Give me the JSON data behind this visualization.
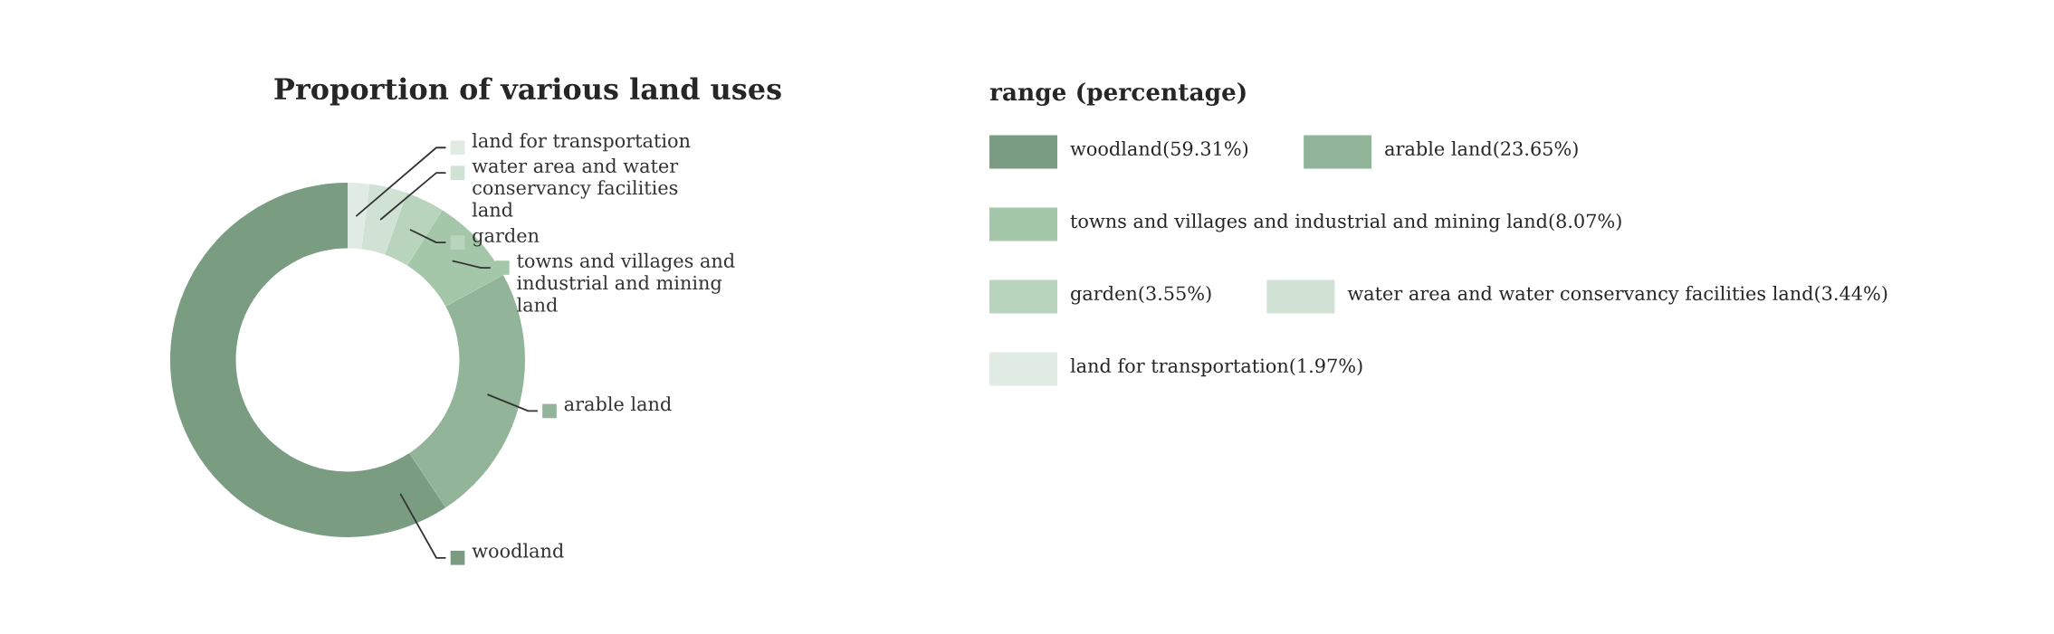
{
  "chart_data": {
    "type": "donut",
    "title": "Proportion of various land uses",
    "legend_title": "range (percentage)",
    "legend": "right",
    "categories": [
      "woodland",
      "arable land",
      "towns and villages and industrial and mining land",
      "garden",
      "water area and water conservancy facilities land",
      "land for transportation"
    ],
    "values": [
      59.31,
      23.65,
      8.07,
      3.55,
      3.44,
      1.97
    ],
    "value_labels": [
      "(59.31%)",
      "(23.65%)",
      "(8.07%)",
      "(3.55%)",
      "(3.44%)",
      "(1.97%)"
    ],
    "colors": [
      "#7a9d82",
      "#92b498",
      "#a3c7a8",
      "#b8d4bc",
      "#cfe2d4",
      "#e0ece3"
    ]
  }
}
